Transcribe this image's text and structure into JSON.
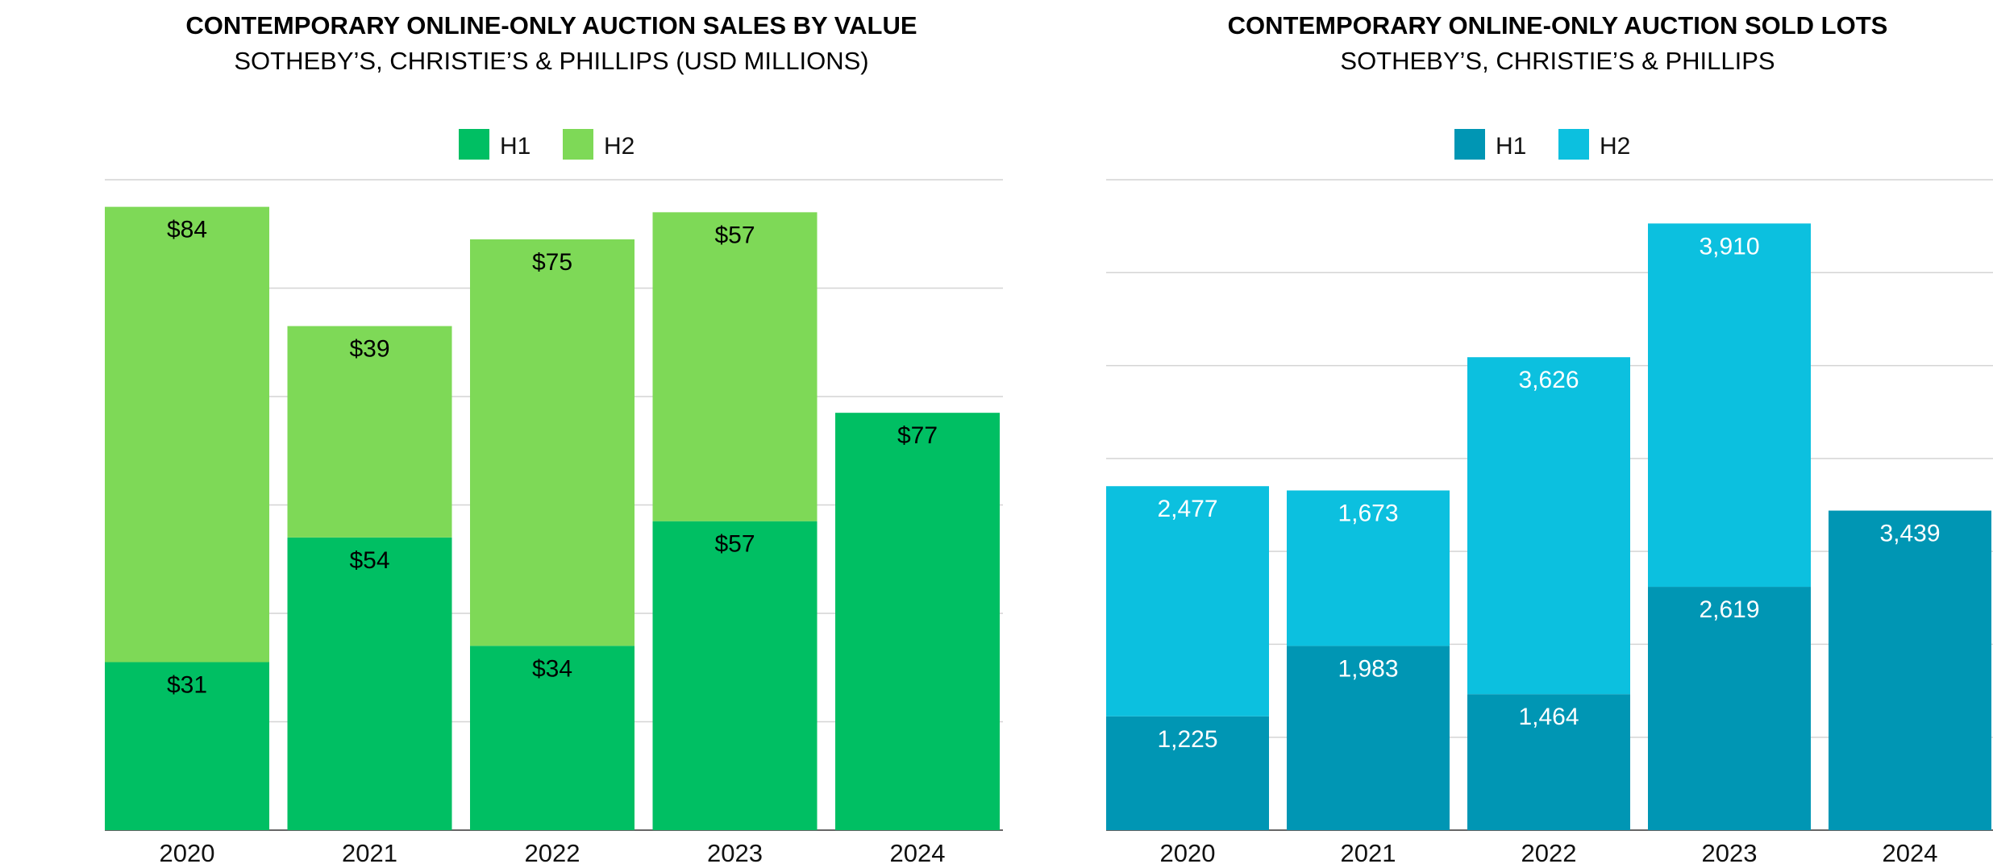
{
  "chart_data": [
    {
      "type": "bar",
      "stacked": true,
      "title": "CONTEMPORARY ONLINE-ONLY AUCTION SALES BY VALUE",
      "subtitle": "SOTHEBY’S, CHRISTIE’S & PHILLIPS (USD MILLIONS)",
      "categories": [
        "2020",
        "2021",
        "2022",
        "2023",
        "2024"
      ],
      "series": [
        {
          "name": "H1",
          "color": "#00bf63",
          "values": [
            31,
            54,
            34,
            57,
            77
          ],
          "labels": [
            "$31",
            "$54",
            "$34",
            "$57",
            "$77"
          ]
        },
        {
          "name": "H2",
          "color": "#7ed957",
          "values": [
            84,
            39,
            75,
            57,
            null
          ],
          "labels": [
            "$84",
            "$39",
            "$75",
            "$57",
            ""
          ]
        }
      ],
      "ylim": [
        0,
        120
      ],
      "gridlines": [
        20,
        40,
        60,
        80,
        100,
        120
      ],
      "label_color": "#000000",
      "legend": "top-center",
      "grid": true
    },
    {
      "type": "bar",
      "stacked": true,
      "title": "CONTEMPORARY ONLINE-ONLY AUCTION SOLD LOTS",
      "subtitle": "SOTHEBY’S, CHRISTIE’S & PHILLIPS",
      "categories": [
        "2020",
        "2021",
        "2022",
        "2023",
        "2024"
      ],
      "series": [
        {
          "name": "H1",
          "color": "#0096b4",
          "values": [
            1225,
            1983,
            1464,
            2619,
            3439
          ],
          "labels": [
            "1,225",
            "1,983",
            "1,464",
            "2,619",
            "3,439"
          ]
        },
        {
          "name": "H2",
          "color": "#0cc0df",
          "values": [
            2477,
            1673,
            3626,
            3910,
            null
          ],
          "labels": [
            "2,477",
            "1,673",
            "3,626",
            "3,910",
            ""
          ]
        }
      ],
      "ylim": [
        0,
        7000
      ],
      "gridlines": [
        1000,
        2000,
        3000,
        4000,
        5000,
        6000,
        7000
      ],
      "label_color": "#ffffff",
      "legend": "top-center",
      "grid": true
    }
  ]
}
